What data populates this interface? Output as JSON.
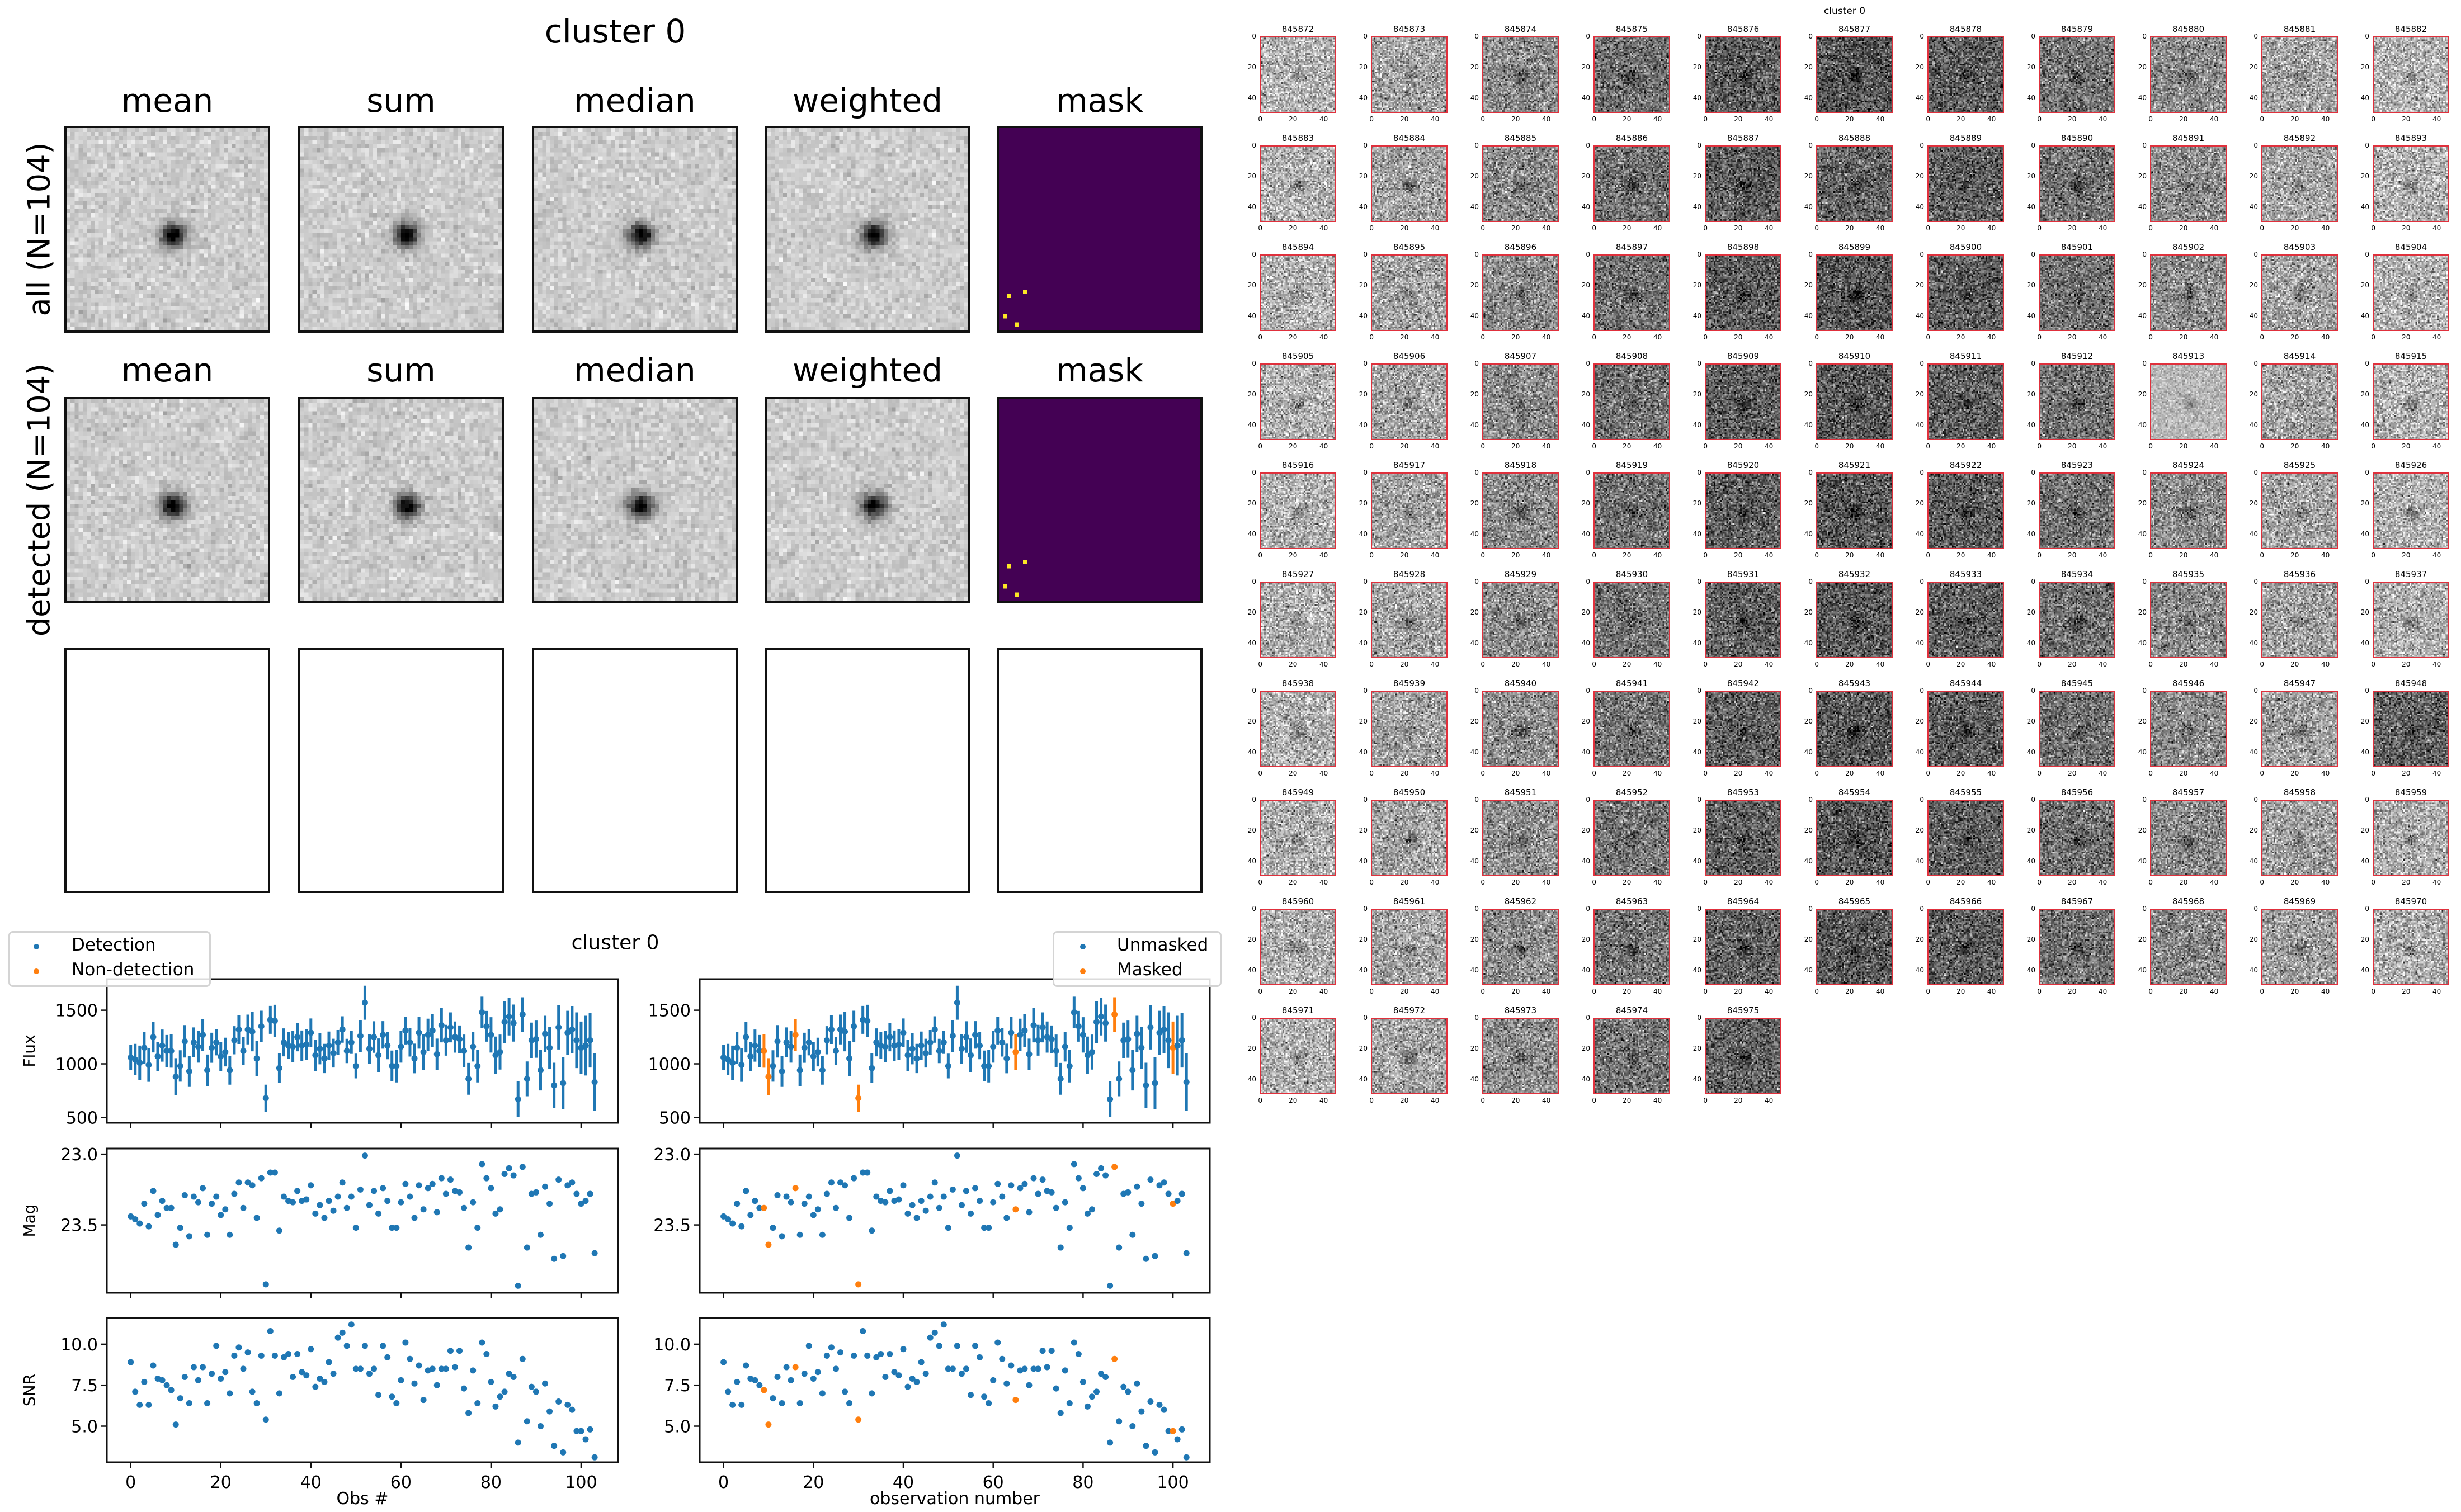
{
  "composite": {
    "title": "cluster 0",
    "columns": [
      "mean",
      "sum",
      "median",
      "weighted",
      "mask"
    ],
    "rows": [
      {
        "label": "all (N=104)",
        "show_titles": true
      },
      {
        "label": "detected (N=104)",
        "show_titles": true
      },
      {
        "label": "",
        "show_titles": false,
        "empty": true
      }
    ],
    "star_pixel": [
      26,
      26
    ],
    "image_grid": 50,
    "mask_pixels": [
      [
        2,
        41
      ],
      [
        6,
        40
      ],
      [
        1,
        46
      ],
      [
        4,
        48
      ]
    ],
    "colormap": "gray_r",
    "mask_colors": {
      "background": "#440154",
      "masked": "#fde725"
    }
  },
  "chart_data": [
    {
      "type": "scatter",
      "title": "cluster 0",
      "x": [
        0,
        1,
        2,
        3,
        4,
        5,
        6,
        7,
        8,
        9,
        10,
        11,
        12,
        13,
        14,
        15,
        16,
        17,
        18,
        19,
        20,
        21,
        22,
        23,
        24,
        25,
        26,
        27,
        28,
        29,
        30,
        31,
        32,
        33,
        34,
        35,
        36,
        37,
        38,
        39,
        40,
        41,
        42,
        43,
        44,
        45,
        46,
        47,
        48,
        49,
        50,
        51,
        52,
        53,
        54,
        55,
        56,
        57,
        58,
        59,
        60,
        61,
        62,
        63,
        64,
        65,
        66,
        67,
        68,
        69,
        70,
        71,
        72,
        73,
        74,
        75,
        76,
        77,
        78,
        79,
        80,
        81,
        82,
        83,
        84,
        85,
        86,
        87,
        88,
        89,
        90,
        91,
        92,
        93,
        94,
        95,
        96,
        97,
        98,
        99,
        100,
        101,
        102,
        103
      ],
      "flux": [
        1060,
        1040,
        1010,
        1150,
        990,
        1250,
        1070,
        1170,
        1120,
        1120,
        880,
        980,
        1210,
        930,
        1200,
        1160,
        1270,
        940,
        1150,
        1200,
        1070,
        1110,
        940,
        1220,
        1320,
        1120,
        1320,
        1300,
        1050,
        1350,
        680,
        1410,
        1400,
        960,
        1200,
        1170,
        1160,
        1250,
        1170,
        1180,
        1290,
        1080,
        1140,
        1050,
        1170,
        1100,
        1200,
        1320,
        1120,
        1200,
        980,
        1260,
        1570,
        1140,
        1250,
        1080,
        1270,
        1170,
        980,
        980,
        1160,
        1310,
        1200,
        1050,
        1290,
        1110,
        1270,
        1310,
        1090,
        1360,
        1220,
        1340,
        1250,
        1230,
        1120,
        860,
        1160,
        980,
        1480,
        1350,
        1270,
        1080,
        1110,
        1390,
        1440,
        1380,
        670,
        1460,
        860,
        1220,
        1230,
        940,
        1280,
        1150,
        800,
        1340,
        820,
        1290,
        1320,
        1220,
        1150,
        1170,
        1220,
        830
      ],
      "mag": [
        23.44,
        23.46,
        23.49,
        23.35,
        23.51,
        23.26,
        23.43,
        23.33,
        23.38,
        23.38,
        23.64,
        23.52,
        23.29,
        23.58,
        23.3,
        23.34,
        23.24,
        23.57,
        23.35,
        23.3,
        23.43,
        23.39,
        23.57,
        23.28,
        23.2,
        23.38,
        23.2,
        23.22,
        23.45,
        23.17,
        23.92,
        23.13,
        23.13,
        23.54,
        23.3,
        23.33,
        23.34,
        23.26,
        23.33,
        23.32,
        23.22,
        23.42,
        23.36,
        23.45,
        23.33,
        23.4,
        23.3,
        23.2,
        23.38,
        23.3,
        23.52,
        23.25,
        23.01,
        23.36,
        23.26,
        23.42,
        23.24,
        23.33,
        23.52,
        23.52,
        23.34,
        23.21,
        23.3,
        23.45,
        23.22,
        23.39,
        23.24,
        23.21,
        23.41,
        23.17,
        23.28,
        23.18,
        23.26,
        23.27,
        23.38,
        23.66,
        23.34,
        23.52,
        23.07,
        23.17,
        23.24,
        23.42,
        23.39,
        23.14,
        23.1,
        23.15,
        23.93,
        23.09,
        23.66,
        23.28,
        23.27,
        23.57,
        23.23,
        23.35,
        23.74,
        23.18,
        23.72,
        23.22,
        23.2,
        23.28,
        23.35,
        23.33,
        23.28,
        23.7
      ],
      "snr": [
        8.9,
        7.1,
        6.3,
        7.7,
        6.3,
        8.7,
        7.9,
        7.8,
        7.5,
        7.2,
        5.1,
        6.7,
        8.0,
        6.4,
        8.6,
        7.8,
        8.6,
        6.4,
        8.2,
        9.9,
        7.9,
        8.3,
        7.0,
        9.3,
        9.8,
        8.5,
        9.5,
        7.1,
        6.4,
        9.3,
        5.4,
        10.8,
        9.3,
        7.0,
        9.2,
        9.4,
        8.0,
        9.4,
        8.3,
        8.1,
        9.7,
        7.4,
        7.9,
        7.7,
        8.9,
        8.2,
        10.4,
        10.7,
        9.9,
        11.2,
        8.5,
        8.5,
        9.9,
        8.2,
        8.5,
        6.9,
        9.9,
        9.2,
        6.8,
        6.4,
        7.8,
        10.1,
        9.1,
        7.6,
        8.7,
        6.6,
        8.4,
        8.5,
        7.5,
        8.5,
        8.5,
        9.6,
        8.6,
        9.6,
        7.3,
        5.8,
        8.4,
        6.4,
        10.1,
        9.4,
        7.7,
        6.2,
        6.8,
        7.1,
        8.2,
        8.0,
        4.0,
        9.1,
        5.3,
        7.4,
        7.1,
        5.0,
        7.6,
        5.9,
        3.8,
        6.5,
        3.4,
        6.3,
        6.0,
        4.7,
        4.7,
        4.2,
        4.8,
        3.1
      ],
      "xlim": [
        -5.3,
        108.2
      ],
      "panels": [
        {
          "key": "flux",
          "ylabel": "Flux",
          "ylim": [
            450,
            1790
          ],
          "inverted": false,
          "ticks": [
            500,
            1000,
            1500
          ],
          "tick_labels": [
            "500",
            "1000",
            "1500"
          ],
          "errorbars": true
        },
        {
          "key": "mag",
          "ylabel": "Mag",
          "ylim": [
            22.96,
            23.98
          ],
          "inverted": true,
          "ticks": [
            23.0,
            23.5
          ],
          "tick_labels": [
            "23.0",
            "23.5"
          ],
          "errorbars": false
        },
        {
          "key": "snr",
          "ylabel": "SNR",
          "ylim": [
            2.8,
            11.6
          ],
          "inverted": false,
          "ticks": [
            5.0,
            7.5,
            10.0
          ],
          "tick_labels": [
            "5.0",
            "7.5",
            "10.0"
          ],
          "errorbars": false
        }
      ],
      "xticks": [
        0,
        20,
        40,
        60,
        80,
        100
      ],
      "xtick_labels": [
        "0",
        "20",
        "40",
        "60",
        "80",
        "100"
      ],
      "subplots": [
        {
          "xlabel": "Obs #",
          "legend": [
            "Detection",
            "Non-detection"
          ],
          "legend_placement": "upper-left",
          "highlight": []
        },
        {
          "xlabel": "observation number",
          "legend": [
            "Unmasked",
            "Masked"
          ],
          "legend_placement": "upper-right",
          "highlight": [
            9,
            10,
            16,
            30,
            65,
            87,
            100
          ]
        }
      ],
      "colors": {
        "primary": "#1f77b4",
        "secondary": "#ff7f0e"
      },
      "grid": false
    }
  ],
  "thumbnails": {
    "title": "cluster 0",
    "ids": [
      "845872",
      "845873",
      "845874",
      "845875",
      "845876",
      "845877",
      "845878",
      "845879",
      "845880",
      "845881",
      "845882",
      "845883",
      "845884",
      "845885",
      "845886",
      "845887",
      "845888",
      "845889",
      "845890",
      "845891",
      "845892",
      "845893",
      "845894",
      "845895",
      "845896",
      "845897",
      "845898",
      "845899",
      "845900",
      "845901",
      "845902",
      "845903",
      "845904",
      "845905",
      "845906",
      "845907",
      "845908",
      "845909",
      "845910",
      "845911",
      "845912",
      "845913",
      "845914",
      "845915",
      "845916",
      "845917",
      "845918",
      "845919",
      "845920",
      "845921",
      "845922",
      "845923",
      "845924",
      "845925",
      "845926",
      "845927",
      "845928",
      "845929",
      "845930",
      "845931",
      "845932",
      "845933",
      "845934",
      "845935",
      "845936",
      "845937",
      "845938",
      "845939",
      "845940",
      "845941",
      "845942",
      "845943",
      "845944",
      "845945",
      "845946",
      "845947",
      "845948",
      "845949",
      "845950",
      "845951",
      "845952",
      "845953",
      "845954",
      "845955",
      "845956",
      "845957",
      "845958",
      "845959",
      "845960",
      "845961",
      "845962",
      "845963",
      "845964",
      "845965",
      "845966",
      "845967",
      "845968",
      "845969",
      "845970",
      "845971",
      "845972",
      "845973",
      "845974",
      "845975"
    ],
    "columns": 11,
    "ticks": [
      0,
      20,
      40
    ],
    "tick_labels": [
      "0",
      "20",
      "40"
    ],
    "frame_color": "#e0303c"
  }
}
